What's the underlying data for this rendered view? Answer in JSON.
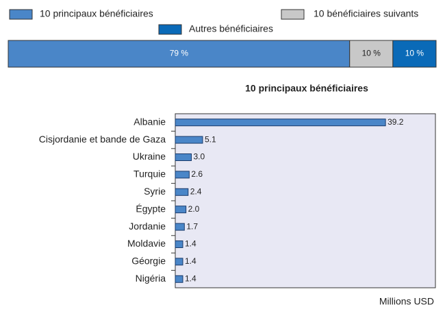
{
  "chart_data": [
    {
      "type": "stacked-bar",
      "series": [
        {
          "name": "10 principaux bénéficiaires",
          "color": "#4a86c8",
          "values": [
            79
          ],
          "value_labels": [
            "79 %"
          ]
        },
        {
          "name": "10 bénéficiaires suivants",
          "color": "#c8c8c8",
          "values": [
            10
          ],
          "value_labels": [
            "10 %"
          ]
        },
        {
          "name": "Autres bénéficiaires",
          "color": "#0a6ab8",
          "values": [
            10
          ],
          "value_labels": [
            "10 %"
          ]
        }
      ],
      "xlim": [
        0,
        99
      ]
    },
    {
      "type": "hbar",
      "title": "10 principaux bénéficiaires",
      "categories": [
        "Albanie",
        "Cisjordanie et bande de Gaza",
        "Ukraine",
        "Turquie",
        "Syrie",
        "Égypte",
        "Jordanie",
        "Moldavie",
        "Géorgie",
        "Nigéria"
      ],
      "values": [
        39.2,
        5.1,
        3.0,
        2.6,
        2.4,
        2.0,
        1.7,
        1.4,
        1.4,
        1.4
      ],
      "value_labels": [
        "39.2",
        "5.1",
        "3.0",
        "2.6",
        "2.4",
        "2.0",
        "1.7",
        "1.4",
        "1.4",
        "1.4"
      ],
      "color": "#4a86c8",
      "xlabel": "Millions USD",
      "xlim": [
        0,
        48.5
      ]
    }
  ]
}
